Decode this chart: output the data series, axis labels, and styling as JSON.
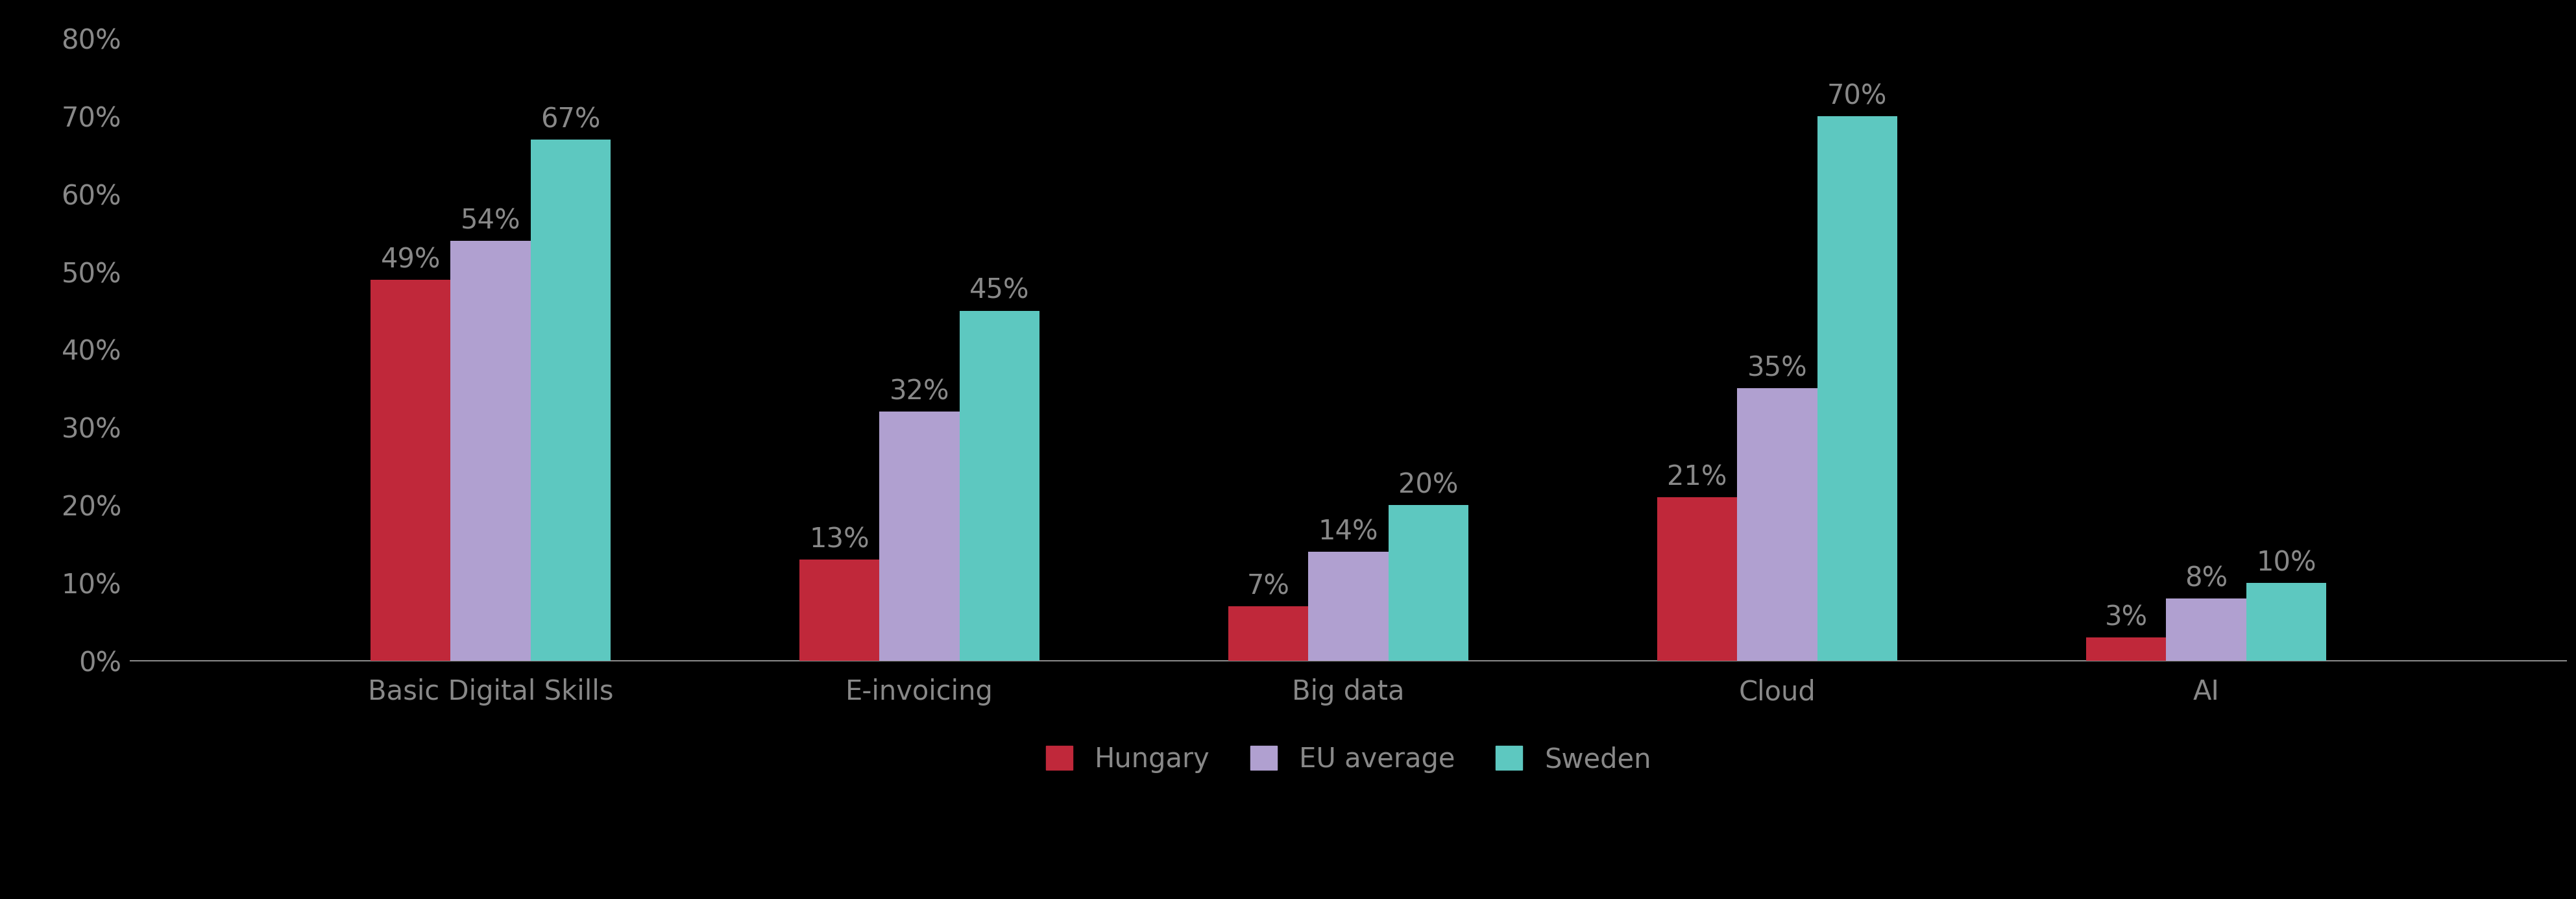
{
  "categories": [
    "Basic Digital Skills",
    "E-invoicing",
    "Big data",
    "Cloud",
    "AI"
  ],
  "series": {
    "Hungary": [
      49,
      13,
      7,
      21,
      3
    ],
    "EU average": [
      54,
      32,
      14,
      35,
      8
    ],
    "Sweden": [
      67,
      45,
      20,
      70,
      10
    ]
  },
  "colors": {
    "Hungary": "#C0283A",
    "EU average": "#B0A0D0",
    "Sweden": "#5DC8C0"
  },
  "ylim": [
    0,
    80
  ],
  "yticks": [
    0,
    10,
    20,
    30,
    40,
    50,
    60,
    70,
    80
  ],
  "background_color": "#000000",
  "text_color": "#888888",
  "legend_labels": [
    "Hungary",
    "EU average",
    "Sweden"
  ],
  "bar_width": 0.28,
  "label_fontsize": 30,
  "tick_fontsize": 30,
  "legend_fontsize": 30,
  "value_fontsize": 30
}
